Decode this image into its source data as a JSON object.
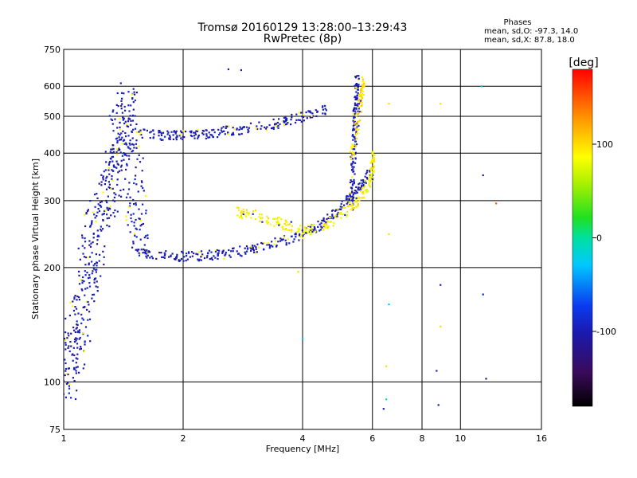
{
  "chart_data": {
    "type": "scatter",
    "title": "Tromsø 20160129 13:28:00–13:29:43",
    "subtitle": "RwPretec (8p)",
    "xlabel": "Frequency [MHz]",
    "ylabel": "Stationary phase Virtual Height [km]",
    "x_scale": "log2",
    "y_scale": "log",
    "xlim": [
      1,
      16
    ],
    "ylim": [
      75,
      750
    ],
    "x_ticks": [
      1,
      2,
      4,
      6,
      8,
      10,
      16
    ],
    "y_ticks": [
      75,
      100,
      200,
      300,
      400,
      500,
      600,
      750
    ],
    "grid": true,
    "stats": {
      "title": "Phases",
      "line_o": "mean, sd,O: -97.3, 14.0",
      "line_x": "mean, sd,X:  87.8, 18.0"
    },
    "colorbar": {
      "label": "[deg]",
      "range": [
        -180,
        180
      ],
      "ticks": [
        100,
        0,
        -100
      ],
      "colormap": "rainbow: black→purple→blue→cyan→green→yellow→orange→red"
    },
    "traces": [
      {
        "name": "o_lower_layer",
        "phase": -100,
        "points": [
          [
            1.5,
            220
          ],
          [
            1.7,
            216
          ],
          [
            2.0,
            214
          ],
          [
            2.3,
            215
          ],
          [
            2.6,
            218
          ],
          [
            3.0,
            224
          ],
          [
            3.5,
            234
          ],
          [
            4.0,
            245
          ],
          [
            4.5,
            260
          ],
          [
            5.0,
            285
          ],
          [
            5.5,
            320
          ],
          [
            5.9,
            355
          ]
        ]
      },
      {
        "name": "o_cusp_vertical",
        "phase": -100,
        "points": [
          [
            5.3,
            290
          ],
          [
            5.35,
            350
          ],
          [
            5.4,
            420
          ],
          [
            5.42,
            500
          ],
          [
            5.45,
            560
          ],
          [
            5.5,
            630
          ]
        ]
      },
      {
        "name": "o_upper_band",
        "phase": -100,
        "points": [
          [
            1.55,
            450
          ],
          [
            1.8,
            445
          ],
          [
            2.0,
            445
          ],
          [
            2.3,
            450
          ],
          [
            2.6,
            458
          ],
          [
            3.0,
            468
          ],
          [
            3.5,
            480
          ],
          [
            4.0,
            500
          ],
          [
            4.6,
            520
          ]
        ]
      },
      {
        "name": "x_trace",
        "phase": 90,
        "points": [
          [
            2.7,
            280
          ],
          [
            3.0,
            275
          ],
          [
            3.5,
            262
          ],
          [
            4.0,
            250
          ],
          [
            4.5,
            256
          ],
          [
            5.0,
            275
          ],
          [
            5.5,
            300
          ],
          [
            5.9,
            330
          ],
          [
            6.0,
            360
          ],
          [
            6.0,
            400
          ]
        ]
      },
      {
        "name": "x_cusp",
        "phase": 100,
        "points": [
          [
            5.3,
            380
          ],
          [
            5.5,
            480
          ],
          [
            5.6,
            560
          ],
          [
            5.7,
            620
          ]
        ]
      },
      {
        "name": "low_f_scatter",
        "phase": -100,
        "points": [
          [
            1.02,
            105
          ],
          [
            1.05,
            120
          ],
          [
            1.1,
            150
          ],
          [
            1.15,
            200
          ],
          [
            1.2,
            250
          ],
          [
            1.3,
            300
          ],
          [
            1.35,
            380
          ],
          [
            1.4,
            460
          ],
          [
            1.45,
            540
          ],
          [
            1.5,
            300
          ],
          [
            1.55,
            250
          ]
        ]
      }
    ],
    "sparse_points": [
      {
        "x": 2.6,
        "y": 665,
        "phase": -100
      },
      {
        "x": 2.8,
        "y": 662,
        "phase": -100
      },
      {
        "x": 6.6,
        "y": 540,
        "phase": 100
      },
      {
        "x": 6.6,
        "y": 160,
        "phase": -30
      },
      {
        "x": 6.5,
        "y": 110,
        "phase": 100
      },
      {
        "x": 6.5,
        "y": 90,
        "phase": -10
      },
      {
        "x": 6.4,
        "y": 85,
        "phase": -100
      },
      {
        "x": 8.9,
        "y": 540,
        "phase": 100
      },
      {
        "x": 8.9,
        "y": 180,
        "phase": -100
      },
      {
        "x": 8.9,
        "y": 140,
        "phase": 100
      },
      {
        "x": 8.7,
        "y": 107,
        "phase": -100
      },
      {
        "x": 8.8,
        "y": 87,
        "phase": -100
      },
      {
        "x": 11.4,
        "y": 350,
        "phase": -100
      },
      {
        "x": 11.4,
        "y": 170,
        "phase": -100
      },
      {
        "x": 11.6,
        "y": 102,
        "phase": -120
      },
      {
        "x": 11.3,
        "y": 600,
        "phase": -30
      },
      {
        "x": 12.3,
        "y": 295,
        "phase": 150
      },
      {
        "x": 6.6,
        "y": 245,
        "phase": 100
      },
      {
        "x": 3.9,
        "y": 195,
        "phase": 100
      },
      {
        "x": 4.0,
        "y": 130,
        "phase": -30
      }
    ]
  }
}
